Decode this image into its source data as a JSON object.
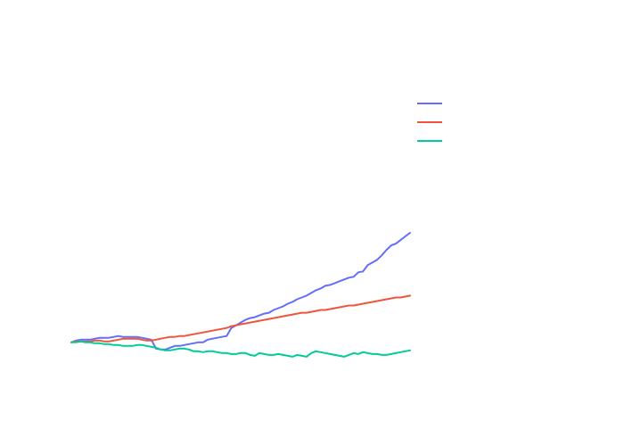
{
  "chart_data": {
    "type": "line",
    "title": "",
    "xlabel": "",
    "ylabel": "",
    "grid": false,
    "legend_placement": "top-right",
    "x": [
      0,
      1,
      2,
      3,
      4,
      5,
      6,
      7,
      8,
      9,
      10,
      11,
      12,
      13,
      14,
      15,
      16,
      17,
      18,
      19,
      20,
      21,
      22,
      23,
      24,
      25,
      26,
      27,
      28,
      29,
      30,
      31,
      32,
      33,
      34,
      35,
      36,
      37,
      38,
      39,
      40,
      41,
      42,
      43,
      44,
      45,
      46,
      47,
      48,
      49,
      50,
      51,
      52,
      53,
      54,
      55,
      56,
      57,
      58,
      59,
      60,
      61,
      62,
      63,
      64,
      65,
      66,
      67,
      68,
      69,
      70,
      71,
      72
    ],
    "xlim": [
      0,
      72
    ],
    "ylim": [
      -36,
      282
    ],
    "series": [
      {
        "name": "",
        "color": "#636efa",
        "values": [
          0,
          2,
          3,
          3,
          3,
          4,
          5,
          5,
          5,
          6,
          7,
          6,
          6,
          6,
          6,
          5,
          4,
          3,
          -7,
          -8,
          -8,
          -6,
          -4,
          -4,
          -3,
          -2,
          -1,
          0,
          0,
          3,
          4,
          5,
          6,
          7,
          16,
          19,
          22,
          25,
          27,
          28,
          30,
          32,
          33,
          36,
          38,
          40,
          43,
          45,
          48,
          50,
          52,
          55,
          58,
          60,
          63,
          64,
          66,
          68,
          70,
          72,
          73,
          78,
          79,
          86,
          89,
          92,
          97,
          103,
          108,
          110,
          114,
          118,
          122
        ]
      },
      {
        "name": "",
        "color": "#ef553b",
        "values": [
          0,
          1,
          1,
          1,
          1,
          2,
          2,
          1,
          1,
          2,
          3,
          4,
          4,
          4,
          4,
          3,
          2,
          2,
          3,
          4,
          5,
          6,
          6,
          7,
          7,
          8,
          9,
          10,
          11,
          12,
          13,
          14,
          15,
          16,
          18,
          19,
          20,
          21,
          22,
          23,
          24,
          25,
          26,
          27,
          28,
          29,
          30,
          31,
          32,
          33,
          33,
          34,
          35,
          36,
          36,
          37,
          38,
          39,
          40,
          41,
          41,
          42,
          43,
          44,
          45,
          46,
          47,
          48,
          49,
          50,
          50,
          51,
          52
        ]
      },
      {
        "name": "",
        "color": "#00cc96",
        "values": [
          0,
          0,
          1,
          0,
          0,
          -1,
          -1,
          -2,
          -2,
          -3,
          -3,
          -4,
          -4,
          -4,
          -3,
          -3,
          -4,
          -5,
          -6,
          -8,
          -9,
          -9,
          -8,
          -7,
          -7,
          -8,
          -10,
          -10,
          -11,
          -10,
          -10,
          -11,
          -12,
          -12,
          -13,
          -13,
          -12,
          -12,
          -14,
          -15,
          -12,
          -13,
          -14,
          -14,
          -13,
          -14,
          -15,
          -16,
          -14,
          -15,
          -16,
          -12,
          -10,
          -11,
          -12,
          -13,
          -14,
          -15,
          -16,
          -14,
          -12,
          -13,
          -11,
          -12,
          -13,
          -13,
          -14,
          -14,
          -13,
          -12,
          -11,
          -10,
          -9
        ]
      }
    ]
  }
}
